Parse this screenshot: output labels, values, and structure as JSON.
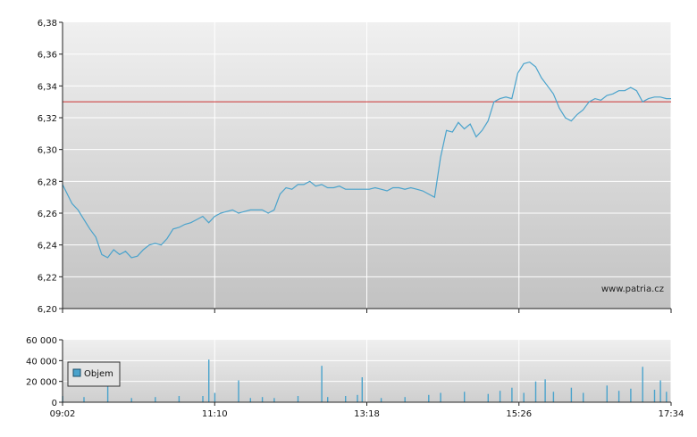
{
  "chart_data": [
    {
      "type": "line",
      "title": "",
      "xlabel": "",
      "ylabel": "",
      "ylim": [
        6.2,
        6.38
      ],
      "yticks": [
        "6,38",
        "6,36",
        "6,34",
        "6,32",
        "6,30",
        "6,28",
        "6,26",
        "6,24",
        "6,22",
        "6,20"
      ],
      "xticks": [
        "09:02",
        "11:10",
        "13:18",
        "15:26",
        "17:34"
      ],
      "grid": true,
      "reference_line": 6.33,
      "watermark": "www.patria.cz",
      "colors": {
        "line": "#4aa3cc",
        "reference": "#cc3333",
        "grid": "#ffffff"
      },
      "series": [
        {
          "x": [
            "09:02",
            "09:10",
            "09:15",
            "09:20",
            "09:25",
            "09:30",
            "09:35",
            "09:40",
            "09:45",
            "09:50",
            "09:55",
            "10:00",
            "10:05",
            "10:10",
            "10:15",
            "10:20",
            "10:25",
            "10:30",
            "10:35",
            "10:40",
            "10:45",
            "10:50",
            "10:55",
            "11:00",
            "11:05",
            "11:10",
            "11:15",
            "11:20",
            "11:25",
            "11:30",
            "11:35",
            "11:40",
            "11:45",
            "11:50",
            "11:55",
            "12:00",
            "12:05",
            "12:10",
            "12:15",
            "12:20",
            "12:25",
            "12:30",
            "12:35",
            "12:40",
            "12:45",
            "12:50",
            "12:55",
            "13:00",
            "13:05",
            "13:10",
            "13:15",
            "13:20",
            "13:25",
            "13:30",
            "13:35",
            "13:40",
            "13:45",
            "13:50",
            "13:55",
            "14:00",
            "14:05",
            "14:10",
            "14:15",
            "14:20",
            "14:25",
            "14:30",
            "14:35",
            "14:40",
            "14:45",
            "14:50",
            "14:55",
            "15:00",
            "15:05",
            "15:10",
            "15:15",
            "15:20",
            "15:25",
            "15:30",
            "15:35",
            "15:40",
            "15:45",
            "15:50",
            "15:55",
            "16:00",
            "16:05",
            "16:10",
            "16:15",
            "16:20",
            "16:25",
            "16:30",
            "16:35",
            "16:40",
            "16:45",
            "16:50",
            "16:55",
            "17:00",
            "17:05",
            "17:10",
            "17:15",
            "17:20",
            "17:25",
            "17:30",
            "17:34"
          ],
          "values": [
            6.278,
            6.266,
            6.262,
            6.256,
            6.25,
            6.245,
            6.234,
            6.232,
            6.237,
            6.234,
            6.236,
            6.232,
            6.233,
            6.237,
            6.24,
            6.241,
            6.24,
            6.244,
            6.25,
            6.251,
            6.253,
            6.254,
            6.256,
            6.258,
            6.254,
            6.258,
            6.26,
            6.261,
            6.262,
            6.26,
            6.261,
            6.262,
            6.262,
            6.262,
            6.26,
            6.262,
            6.272,
            6.276,
            6.275,
            6.278,
            6.278,
            6.28,
            6.277,
            6.278,
            6.276,
            6.276,
            6.277,
            6.275,
            6.275,
            6.275,
            6.275,
            6.275,
            6.276,
            6.275,
            6.274,
            6.276,
            6.276,
            6.275,
            6.276,
            6.275,
            6.274,
            6.272,
            6.27,
            6.295,
            6.312,
            6.311,
            6.317,
            6.313,
            6.316,
            6.308,
            6.312,
            6.318,
            6.33,
            6.332,
            6.333,
            6.332,
            6.348,
            6.354,
            6.355,
            6.352,
            6.345,
            6.34,
            6.335,
            6.326,
            6.32,
            6.318,
            6.322,
            6.325,
            6.33,
            6.332,
            6.331,
            6.334,
            6.335,
            6.337,
            6.337,
            6.339,
            6.337,
            6.33,
            6.332,
            6.333,
            6.333,
            6.332,
            6.332
          ]
        }
      ]
    },
    {
      "type": "bar",
      "title": "",
      "ylim": [
        0,
        60000
      ],
      "yticks": [
        "60 000",
        "40 000",
        "20 000",
        "0"
      ],
      "xticks": [
        "09:02",
        "11:10",
        "13:18",
        "15:26",
        "17:34"
      ],
      "legend": {
        "label": "Objem",
        "placement": "top-left"
      },
      "colors": {
        "bar": "#4aa3cc"
      },
      "series": [
        {
          "name": "Objem",
          "x": [
            "09:02",
            "09:20",
            "09:40",
            "10:00",
            "10:20",
            "10:40",
            "11:00",
            "11:05",
            "11:10",
            "11:30",
            "11:40",
            "11:50",
            "12:00",
            "12:20",
            "12:40",
            "12:45",
            "13:00",
            "13:10",
            "13:14",
            "13:30",
            "13:50",
            "14:10",
            "14:20",
            "14:40",
            "15:00",
            "15:10",
            "15:20",
            "15:30",
            "15:40",
            "15:48",
            "15:55",
            "16:10",
            "16:20",
            "16:40",
            "16:50",
            "17:00",
            "17:10",
            "17:20",
            "17:25",
            "17:30"
          ],
          "values": [
            6000,
            5000,
            20000,
            4000,
            5000,
            6000,
            6000,
            41000,
            9000,
            21000,
            4000,
            5000,
            4000,
            6000,
            35000,
            5000,
            6000,
            7000,
            24000,
            4000,
            5000,
            7000,
            9000,
            10000,
            8000,
            11000,
            14000,
            9000,
            20000,
            22000,
            10000,
            14000,
            9000,
            16000,
            11000,
            13000,
            34000,
            12000,
            21000,
            10000
          ]
        }
      ]
    }
  ]
}
